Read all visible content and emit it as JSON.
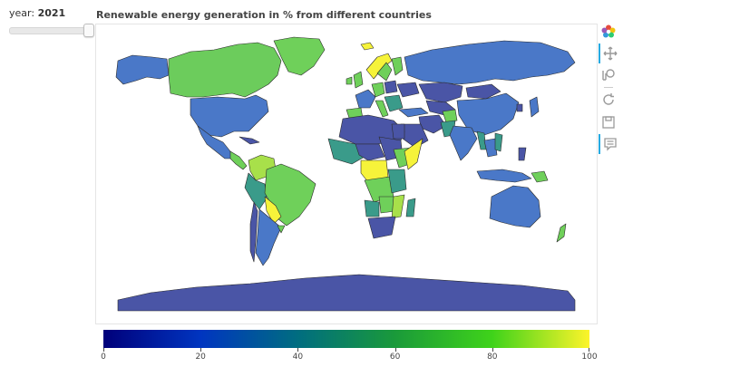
{
  "slider": {
    "label": "year: ",
    "value": "2021",
    "fraction": 1.0
  },
  "plot": {
    "title": "Renewable energy generation in % from different countries"
  },
  "colorbar": {
    "min": 0,
    "max": 100,
    "ticks": [
      "0",
      "20",
      "40",
      "60",
      "80",
      "100"
    ],
    "stops": [
      "#00007a",
      "#0035c0",
      "#006d80",
      "#1a9a3a",
      "#3fd31a",
      "#fdf42a"
    ]
  },
  "toolbar": {
    "tools": [
      "bokeh-logo-icon",
      "pan-icon",
      "wheel-zoom-icon",
      "reset-icon",
      "save-icon",
      "hover-icon"
    ]
  },
  "colors": {
    "ocean": "#ffffff",
    "border": "#2b2b2b",
    "low": "#4a55a6",
    "midlow": "#4a78c8",
    "mid": "#3a9b8a",
    "high": "#6fd05a",
    "top": "#f6f33a",
    "accent": "#26aae1"
  }
}
